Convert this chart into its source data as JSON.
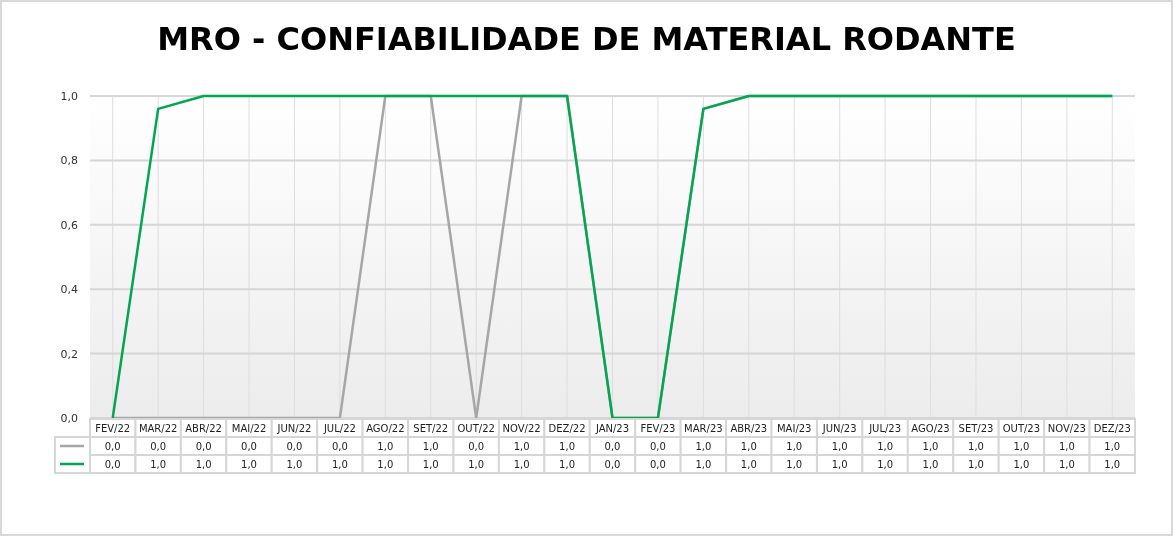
{
  "chart_data": {
    "type": "line",
    "title": "MRO - CONFIABILIDADE DE MATERIAL RODANTE",
    "categories": [
      "FEV/22",
      "MAR/22",
      "ABR/22",
      "MAI/22",
      "JUN/22",
      "JUL/22",
      "AGO/22",
      "SET/22",
      "OUT/22",
      "NOV/22",
      "DEZ/22",
      "JAN/23",
      "FEV/23",
      "MAR/23",
      "ABR/23",
      "MAI/23",
      "JUN/23",
      "JUL/23",
      "AGO/23",
      "SET/23",
      "OUT/23",
      "NOV/23",
      "DEZ/23"
    ],
    "series": [
      {
        "color": "#a6a6a6",
        "values": [
          0,
          0,
          0,
          0,
          0,
          0,
          1,
          1,
          0,
          1,
          1,
          0,
          0,
          0.96,
          1,
          1,
          1,
          1,
          1,
          1,
          1,
          1,
          1
        ],
        "value_labels": [
          "0,0",
          "0,0",
          "0,0",
          "0,0",
          "0,0",
          "0,0",
          "1,0",
          "1,0",
          "0,0",
          "1,0",
          "1,0",
          "0,0",
          "0,0",
          "1,0",
          "1,0",
          "1,0",
          "1,0",
          "1,0",
          "1,0",
          "1,0",
          "1,0",
          "1,0",
          "1,0"
        ]
      },
      {
        "color": "#00a74f",
        "values": [
          0,
          0.96,
          1,
          1,
          1,
          1,
          1,
          1,
          1,
          1,
          1,
          0,
          0,
          0.96,
          1,
          1,
          1,
          1,
          1,
          1,
          1,
          1,
          1
        ],
        "value_labels": [
          "0,0",
          "1,0",
          "1,0",
          "1,0",
          "1,0",
          "1,0",
          "1,0",
          "1,0",
          "1,0",
          "1,0",
          "1,0",
          "0,0",
          "0,0",
          "1,0",
          "1,0",
          "1,0",
          "1,0",
          "1,0",
          "1,0",
          "1,0",
          "1,0",
          "1,0",
          "1,0"
        ]
      }
    ],
    "ylim": [
      0,
      1
    ],
    "yticks": [
      {
        "value": 0,
        "label": "0,0"
      },
      {
        "value": 0.2,
        "label": "0,2"
      },
      {
        "value": 0.4,
        "label": "0,4"
      },
      {
        "value": 0.6,
        "label": "0,6"
      },
      {
        "value": 0.8,
        "label": "0,8"
      },
      {
        "value": 1,
        "label": "1,0"
      }
    ],
    "grid": true,
    "marker": "none",
    "line_style": "solid"
  }
}
